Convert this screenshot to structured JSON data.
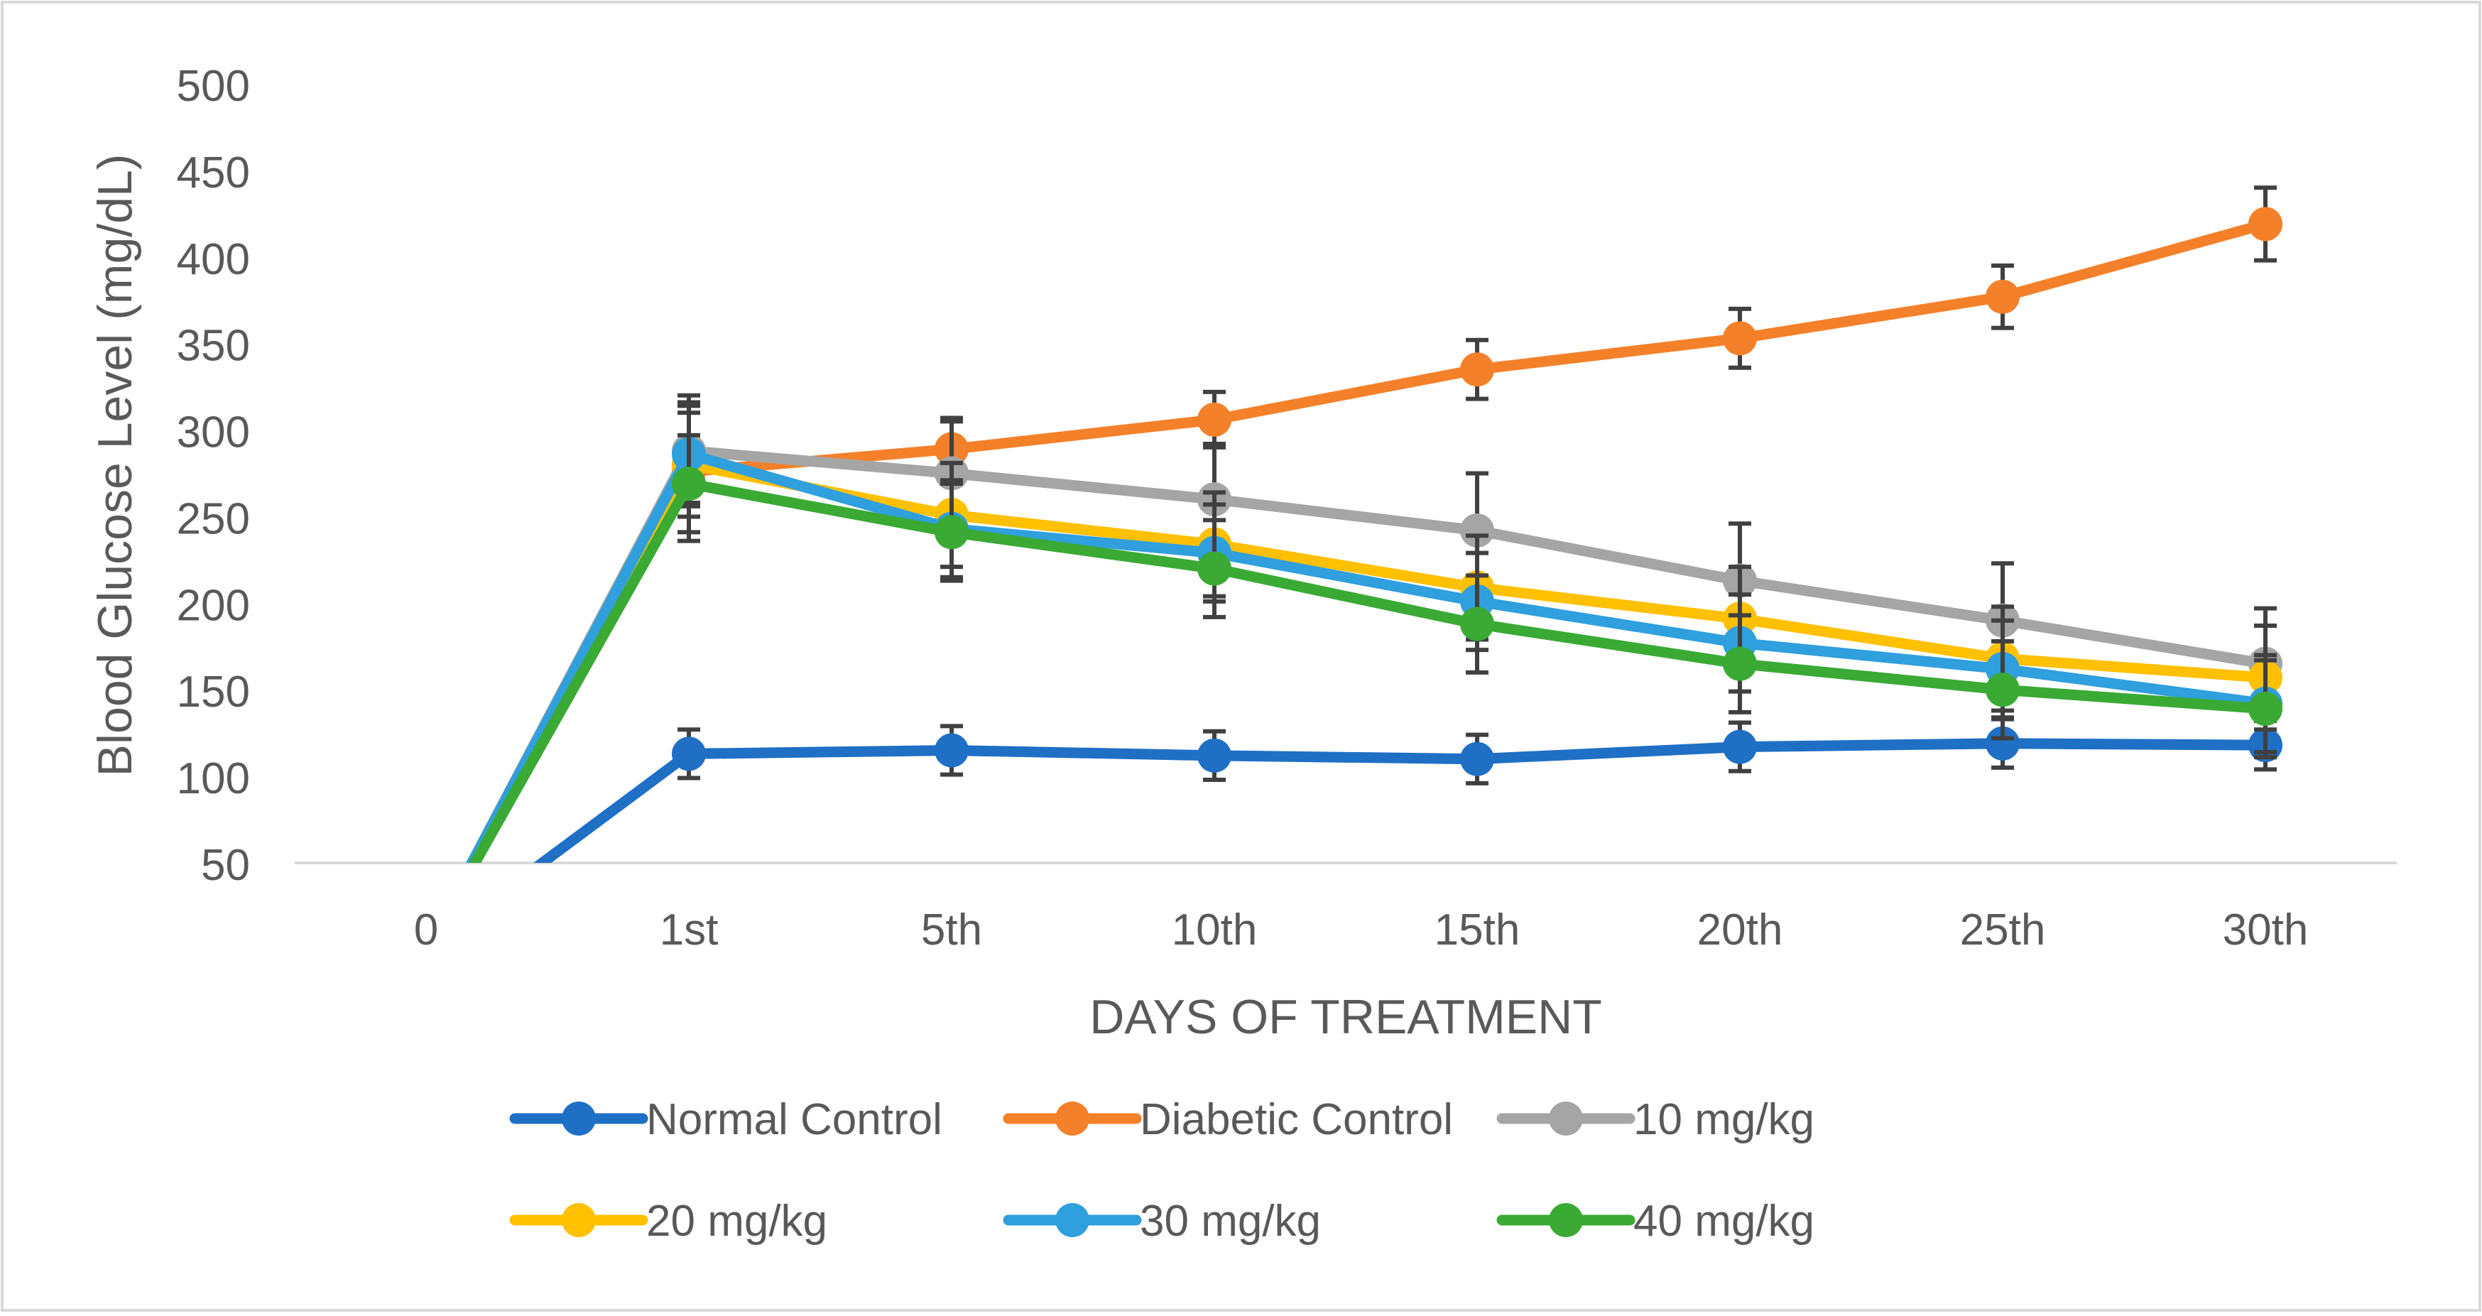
{
  "chart_data": {
    "type": "line",
    "title": "",
    "xlabel": "DAYS OF TREATMENT",
    "ylabel": "Blood Glucose Level (mg/dL)",
    "categories": [
      "0",
      "1st",
      "5th",
      "10th",
      "15th",
      "20th",
      "25th",
      "30th"
    ],
    "ylim": [
      50,
      500
    ],
    "yticks": [
      50,
      100,
      150,
      200,
      250,
      300,
      350,
      400,
      450,
      500
    ],
    "grid": false,
    "legend_position": "bottom",
    "series": [
      {
        "name": "Normal Control",
        "color": "#1F6FC5",
        "values": [
          0,
          113,
          115,
          112,
          110,
          117,
          119,
          118
        ],
        "errors": [
          0,
          14,
          14,
          14,
          14,
          14,
          14,
          14
        ]
      },
      {
        "name": "Diabetic Control",
        "color": "#F4802A",
        "values": [
          0,
          276,
          289,
          306,
          335,
          353,
          377,
          419
        ],
        "errors": [
          0,
          40,
          16,
          16,
          17,
          17,
          18,
          21
        ]
      },
      {
        "name": "10 mg/kg",
        "color": "#A5A5A5",
        "values": [
          0,
          288,
          275,
          260,
          242,
          213,
          190,
          165
        ],
        "errors": [
          0,
          32,
          32,
          32,
          33,
          33,
          33,
          32
        ]
      },
      {
        "name": "20 mg/kg",
        "color": "#FFC000",
        "values": [
          0,
          280,
          251,
          234,
          209,
          191,
          168,
          157
        ],
        "errors": [
          0,
          30,
          30,
          30,
          30,
          30,
          30,
          30
        ]
      },
      {
        "name": "30 mg/kg",
        "color": "#2F9FDD",
        "values": [
          0,
          286,
          243,
          229,
          201,
          177,
          162,
          142
        ],
        "errors": [
          0,
          28,
          28,
          28,
          28,
          28,
          28,
          28
        ]
      },
      {
        "name": "40 mg/kg",
        "color": "#3AAA35",
        "values": [
          0,
          269,
          241,
          220,
          188,
          165,
          150,
          139
        ],
        "errors": [
          0,
          28,
          28,
          28,
          28,
          28,
          28,
          28
        ]
      }
    ]
  }
}
